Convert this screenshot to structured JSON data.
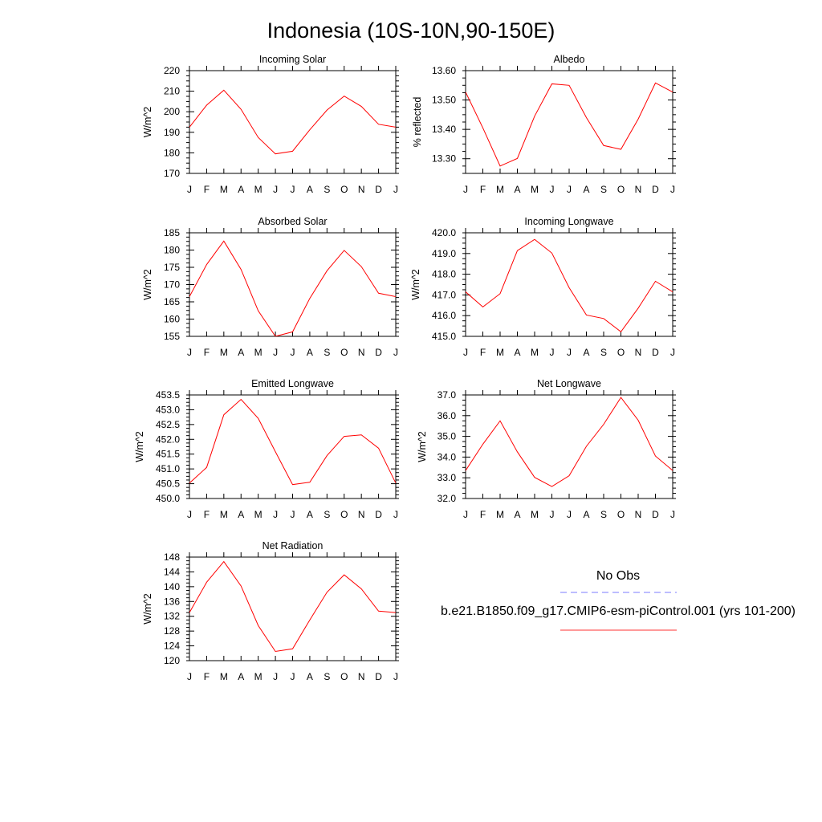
{
  "figure": {
    "title": "Indonesia (10S-10N,90-150E)"
  },
  "legend": {
    "entries": [
      {
        "label": "No Obs",
        "style": "dashed",
        "color": "#7b7bff"
      },
      {
        "label": "b.e21.B1850.f09_g17.CMIP6-esm-piControl.001 (yrs 101-200)",
        "style": "solid",
        "color": "#ff3333"
      }
    ]
  },
  "chart_data": [
    {
      "type": "line",
      "title": "Incoming Solar",
      "ylabel": "W/m^2",
      "categories": [
        "J",
        "F",
        "M",
        "A",
        "M",
        "J",
        "J",
        "A",
        "S",
        "O",
        "N",
        "D",
        "J"
      ],
      "ylim": [
        170,
        220
      ],
      "yticks": [
        170,
        180,
        190,
        200,
        210,
        220
      ],
      "ytick_labels": [
        "170",
        "180",
        "190",
        "200",
        "210",
        "220"
      ],
      "series": [
        {
          "color": "#ff0000",
          "values": [
            192.5,
            203.2,
            210.5,
            201.2,
            187.5,
            179.5,
            180.8,
            191.2,
            200.8,
            207.6,
            202.6,
            193.9,
            192.5
          ]
        }
      ]
    },
    {
      "type": "line",
      "title": "Albedo",
      "ylabel": "% reflected",
      "categories": [
        "J",
        "F",
        "M",
        "A",
        "M",
        "J",
        "J",
        "A",
        "S",
        "O",
        "N",
        "D",
        "J"
      ],
      "ylim": [
        13.25,
        13.6
      ],
      "yticks": [
        13.3,
        13.4,
        13.5,
        13.6
      ],
      "ytick_labels": [
        "13.30",
        "13.40",
        "13.50",
        "13.60"
      ],
      "series": [
        {
          "color": "#ff0000",
          "values": [
            13.527,
            13.405,
            13.275,
            13.301,
            13.445,
            13.555,
            13.55,
            13.44,
            13.345,
            13.332,
            13.435,
            13.558,
            13.527
          ]
        }
      ]
    },
    {
      "type": "line",
      "title": "Absorbed Solar",
      "ylabel": "W/m^2",
      "categories": [
        "J",
        "F",
        "M",
        "A",
        "M",
        "J",
        "J",
        "A",
        "S",
        "O",
        "N",
        "D",
        "J"
      ],
      "ylim": [
        155,
        185
      ],
      "yticks": [
        155,
        160,
        165,
        170,
        175,
        180,
        185
      ],
      "ytick_labels": [
        "155",
        "160",
        "165",
        "170",
        "175",
        "180",
        "185"
      ],
      "series": [
        {
          "color": "#ff0000",
          "values": [
            166.5,
            175.8,
            182.6,
            174.4,
            162.4,
            155.0,
            156.3,
            166.0,
            174.0,
            179.9,
            175.2,
            167.5,
            166.5
          ]
        }
      ]
    },
    {
      "type": "line",
      "title": "Incoming Longwave",
      "ylabel": "W/m^2",
      "categories": [
        "J",
        "F",
        "M",
        "A",
        "M",
        "J",
        "J",
        "A",
        "S",
        "O",
        "N",
        "D",
        "J"
      ],
      "ylim": [
        415.0,
        420.0
      ],
      "yticks": [
        415.0,
        416.0,
        417.0,
        418.0,
        419.0,
        420.0
      ],
      "ytick_labels": [
        "415.0",
        "416.0",
        "417.0",
        "418.0",
        "419.0",
        "420.0"
      ],
      "series": [
        {
          "color": "#ff0000",
          "values": [
            417.15,
            416.42,
            417.06,
            419.14,
            419.68,
            419.02,
            417.35,
            416.03,
            415.86,
            415.22,
            416.36,
            417.66,
            417.15
          ]
        }
      ]
    },
    {
      "type": "line",
      "title": "Emitted Longwave",
      "ylabel": "W/m^2",
      "categories": [
        "J",
        "F",
        "M",
        "A",
        "M",
        "J",
        "J",
        "A",
        "S",
        "O",
        "N",
        "D",
        "J"
      ],
      "ylim": [
        450.0,
        453.5
      ],
      "yticks": [
        450.0,
        450.5,
        451.0,
        451.5,
        452.0,
        452.5,
        453.0,
        453.5
      ],
      "ytick_labels": [
        "450.0",
        "450.5",
        "451.0",
        "451.5",
        "452.0",
        "452.5",
        "453.0",
        "453.5"
      ],
      "series": [
        {
          "color": "#ff0000",
          "values": [
            450.52,
            451.05,
            452.83,
            453.35,
            452.71,
            451.58,
            450.47,
            450.55,
            451.45,
            452.1,
            452.15,
            451.7,
            450.52
          ]
        }
      ]
    },
    {
      "type": "line",
      "title": "Net Longwave",
      "ylabel": "W/m^2",
      "categories": [
        "J",
        "F",
        "M",
        "A",
        "M",
        "J",
        "J",
        "A",
        "S",
        "O",
        "N",
        "D",
        "J"
      ],
      "ylim": [
        32.0,
        37.0
      ],
      "yticks": [
        32.0,
        33.0,
        34.0,
        35.0,
        36.0,
        37.0
      ],
      "ytick_labels": [
        "32.0",
        "33.0",
        "34.0",
        "35.0",
        "36.0",
        "37.0"
      ],
      "series": [
        {
          "color": "#ff0000",
          "values": [
            33.35,
            34.62,
            35.75,
            34.25,
            33.02,
            32.58,
            33.1,
            34.52,
            35.58,
            36.88,
            35.78,
            34.05,
            33.35
          ]
        }
      ]
    },
    {
      "type": "line",
      "title": "Net Radiation",
      "ylabel": "W/m^2",
      "categories": [
        "J",
        "F",
        "M",
        "A",
        "M",
        "J",
        "J",
        "A",
        "S",
        "O",
        "N",
        "D",
        "J"
      ],
      "ylim": [
        120,
        148
      ],
      "yticks": [
        120,
        124,
        128,
        132,
        136,
        140,
        144,
        148
      ],
      "ytick_labels": [
        "120",
        "124",
        "128",
        "132",
        "136",
        "140",
        "144",
        "148"
      ],
      "series": [
        {
          "color": "#ff0000",
          "values": [
            133.0,
            141.2,
            146.8,
            140.2,
            129.5,
            122.5,
            123.2,
            131.0,
            138.5,
            143.2,
            139.4,
            133.4,
            133.0
          ]
        }
      ]
    }
  ]
}
